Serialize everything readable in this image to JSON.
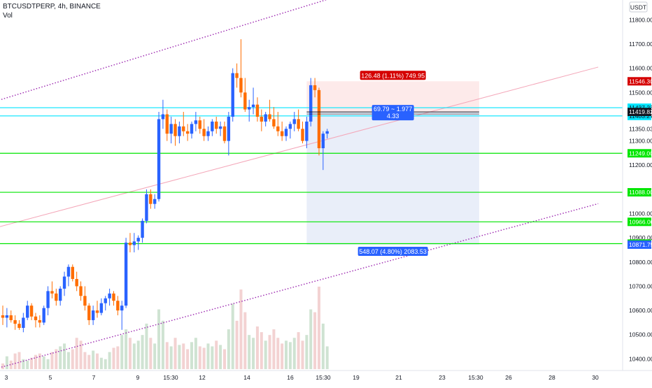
{
  "header": {
    "symbol_line": "BTCUSDTPERP, 4h, BINANCE",
    "volume_label": "Vol"
  },
  "currency_label": "USDT",
  "colors": {
    "up": "#2962ff",
    "down": "#ff6d00",
    "vol_up": "#cfe3d2",
    "vol_down": "#f3d2d2",
    "channel": "#9c27b0",
    "midline": "#f4a7b9",
    "green_level": "#00e600",
    "cyan_level": "#00e5ff",
    "stop_fill": "#fdeaea",
    "target_fill": "#e9eef9",
    "stop_label": "#d50000",
    "target_label": "#2962ff",
    "entry_line": "#131722"
  },
  "chart_data": {
    "type": "candlestick",
    "x_tick_labels": [
      "3",
      "5",
      "7",
      "9",
      "15:30",
      "12",
      "14",
      "16",
      "15:30",
      "19",
      "21",
      "23",
      "15:30",
      "26",
      "28",
      "30"
    ],
    "y_tick_labels": [
      "11800.00",
      "11700.00",
      "11600.00",
      "11500.00",
      "11350.03",
      "11300.00",
      "11200.00",
      "11000.00",
      "10900.00",
      "10800.00",
      "10700.00",
      "10600.00",
      "10500.00",
      "10400.00"
    ],
    "y_tick_values": [
      11800,
      11700,
      11600,
      11500,
      11350,
      11300,
      11200,
      11000,
      10900,
      10800,
      10700,
      10600,
      10500,
      10400
    ],
    "ylim": [
      10352,
      11882
    ],
    "horizontal_levels": [
      {
        "price": 11437.23,
        "label": "11437.23",
        "kind": "cyan"
      },
      {
        "price": 11403.27,
        "label": "11403.27",
        "kind": "cyan"
      },
      {
        "price": 11249.0,
        "label": "11249.00",
        "kind": "green"
      },
      {
        "price": 11088.0,
        "label": "11088.00",
        "kind": "green"
      },
      {
        "price": 10966.0,
        "label": "10966.00",
        "kind": "green"
      },
      {
        "price": 10876.0,
        "label": "10876.00",
        "kind": "green"
      }
    ],
    "price_badges": [
      {
        "price": 11546.3,
        "label": "11546.30",
        "kind": "stop"
      },
      {
        "price": 11419.82,
        "label": "11419.82",
        "kind": "last"
      },
      {
        "price": 10871.75,
        "label": "10871.75",
        "kind": "target"
      }
    ],
    "position": {
      "entry": 11419.82,
      "stop": 11546.3,
      "target": 10871.75,
      "start_index": 74,
      "end_index": 116,
      "stop_label": "126.48 (1.11%) 749.95",
      "ratio_line1": "69.79 ~ 1.977",
      "ratio_line2": "4.33",
      "target_label": "548.07 (4.80%) 2083.53"
    },
    "channel_lines": [
      {
        "kind": "channel",
        "from": [
          -1,
          11468
        ],
        "to": [
          88,
          11931
        ]
      },
      {
        "kind": "channel",
        "from": [
          -1,
          10363
        ],
        "to": [
          145,
          11041
        ]
      },
      {
        "kind": "mid",
        "from": [
          -1,
          10945
        ],
        "to": [
          145,
          11605
        ]
      }
    ],
    "candles": [
      [
        10580,
        10620,
        10540,
        10570
      ],
      [
        10570,
        10610,
        10530,
        10580
      ],
      [
        10580,
        10600,
        10550,
        10560
      ],
      [
        10560,
        10580,
        10520,
        10545
      ],
      [
        10545,
        10560,
        10520,
        10528
      ],
      [
        10528,
        10590,
        10510,
        10570
      ],
      [
        10570,
        10640,
        10560,
        10620
      ],
      [
        10620,
        10630,
        10560,
        10575
      ],
      [
        10575,
        10590,
        10530,
        10560
      ],
      [
        10560,
        10580,
        10530,
        10550
      ],
      [
        10550,
        10620,
        10540,
        10610
      ],
      [
        10610,
        10700,
        10580,
        10680
      ],
      [
        10680,
        10720,
        10650,
        10670
      ],
      [
        10670,
        10690,
        10620,
        10640
      ],
      [
        10640,
        10700,
        10620,
        10690
      ],
      [
        10690,
        10760,
        10660,
        10740
      ],
      [
        10740,
        10790,
        10700,
        10780
      ],
      [
        10780,
        10790,
        10720,
        10730
      ],
      [
        10730,
        10760,
        10680,
        10700
      ],
      [
        10700,
        10720,
        10640,
        10660
      ],
      [
        10660,
        10700,
        10600,
        10620
      ],
      [
        10620,
        10630,
        10540,
        10560
      ],
      [
        10560,
        10620,
        10540,
        10600
      ],
      [
        10600,
        10640,
        10570,
        10590
      ],
      [
        10590,
        10650,
        10580,
        10630
      ],
      [
        10630,
        10660,
        10600,
        10650
      ],
      [
        10650,
        10690,
        10620,
        10670
      ],
      [
        10670,
        10680,
        10620,
        10640
      ],
      [
        10640,
        10660,
        10580,
        10600
      ],
      [
        10600,
        10640,
        10520,
        10620
      ],
      [
        10620,
        10900,
        10610,
        10880
      ],
      [
        10880,
        10920,
        10840,
        10870
      ],
      [
        10870,
        10920,
        10840,
        10885
      ],
      [
        10885,
        10910,
        10850,
        10900
      ],
      [
        10900,
        10980,
        10880,
        10970
      ],
      [
        10970,
        11100,
        10960,
        11080
      ],
      [
        11080,
        11100,
        11020,
        11040
      ],
      [
        11040,
        11080,
        11020,
        11060
      ],
      [
        11060,
        11420,
        11050,
        11390
      ],
      [
        11390,
        11470,
        11350,
        11410
      ],
      [
        11410,
        11430,
        11300,
        11330
      ],
      [
        11330,
        11400,
        11290,
        11370
      ],
      [
        11370,
        11390,
        11280,
        11320
      ],
      [
        11320,
        11380,
        11290,
        11360
      ],
      [
        11360,
        11420,
        11320,
        11340
      ],
      [
        11340,
        11370,
        11300,
        11330
      ],
      [
        11330,
        11380,
        11310,
        11370
      ],
      [
        11370,
        11420,
        11340,
        11385
      ],
      [
        11385,
        11400,
        11330,
        11350
      ],
      [
        11350,
        11390,
        11300,
        11320
      ],
      [
        11320,
        11360,
        11300,
        11340
      ],
      [
        11340,
        11390,
        11320,
        11380
      ],
      [
        11380,
        11400,
        11330,
        11350
      ],
      [
        11350,
        11380,
        11320,
        11360
      ],
      [
        11360,
        11380,
        11290,
        11300
      ],
      [
        11300,
        11420,
        11240,
        11400
      ],
      [
        11400,
        11600,
        11380,
        11580
      ],
      [
        11580,
        11620,
        11520,
        11560
      ],
      [
        11560,
        11720,
        11480,
        11500
      ],
      [
        11500,
        11560,
        11420,
        11430
      ],
      [
        11430,
        11470,
        11380,
        11440
      ],
      [
        11440,
        11520,
        11410,
        11450
      ],
      [
        11450,
        11480,
        11380,
        11400
      ],
      [
        11400,
        11430,
        11340,
        11380
      ],
      [
        11380,
        11420,
        11360,
        11410
      ],
      [
        11410,
        11470,
        11380,
        11390
      ],
      [
        11390,
        11440,
        11350,
        11360
      ],
      [
        11360,
        11420,
        11320,
        11340
      ],
      [
        11340,
        11380,
        11300,
        11320
      ],
      [
        11320,
        11360,
        11300,
        11350
      ],
      [
        11350,
        11380,
        11310,
        11370
      ],
      [
        11370,
        11420,
        11340,
        11390
      ],
      [
        11390,
        11430,
        11340,
        11350
      ],
      [
        11350,
        11380,
        11290,
        11300
      ],
      [
        11300,
        11400,
        11270,
        11380
      ],
      [
        11380,
        11560,
        11360,
        11530
      ],
      [
        11530,
        11560,
        11480,
        11510
      ],
      [
        11510,
        11520,
        11240,
        11270
      ],
      [
        11270,
        11340,
        11180,
        11330
      ],
      [
        11330,
        11350,
        11310,
        11340
      ]
    ],
    "volumes": [
      20,
      45,
      30,
      55,
      60,
      35,
      30,
      40,
      50,
      55,
      45,
      35,
      60,
      70,
      80,
      90,
      60,
      70,
      110,
      100,
      60,
      50,
      65,
      55,
      40,
      35,
      60,
      75,
      80,
      120,
      140,
      110,
      90,
      100,
      120,
      160,
      110,
      90,
      210,
      170,
      95,
      80,
      110,
      85,
      90,
      70,
      95,
      110,
      80,
      75,
      90,
      80,
      100,
      85,
      70,
      140,
      230,
      170,
      280,
      200,
      120,
      110,
      150,
      130,
      100,
      120,
      140,
      110,
      90,
      100,
      95,
      110,
      130,
      100,
      120,
      210,
      200,
      290,
      160,
      80
    ]
  }
}
